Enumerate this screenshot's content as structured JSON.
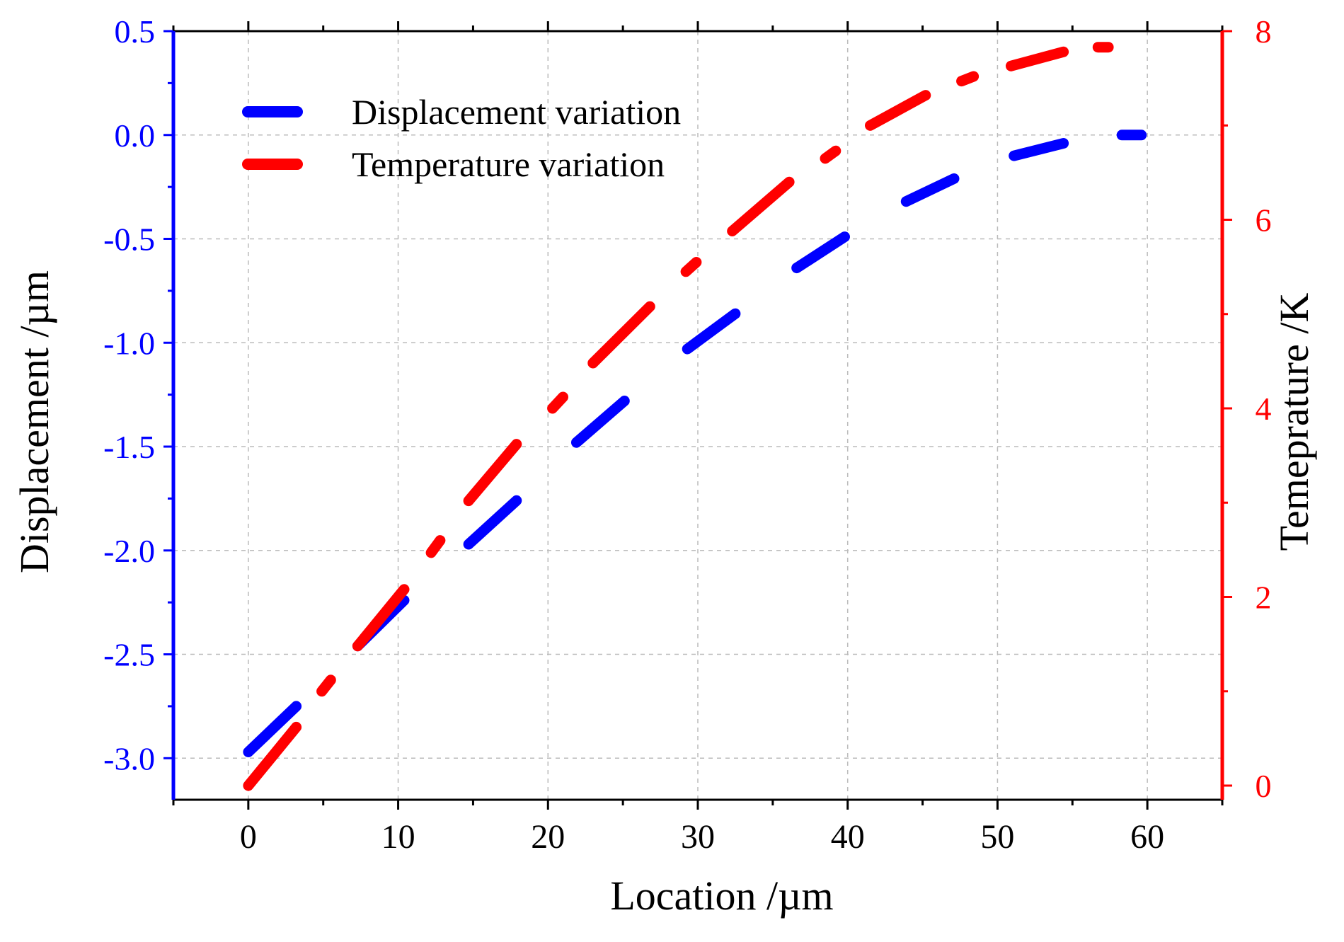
{
  "chart_data": {
    "type": "line",
    "x_label": "Location /µm",
    "y_left_label": "Displacement /µm",
    "y_right_label": "Temeprature /K",
    "x_range": [
      -5,
      65
    ],
    "y_left_range": [
      -3.2,
      0.5
    ],
    "y_right_range": [
      -0.15,
      8
    ],
    "x_ticks": [
      0,
      10,
      20,
      30,
      40,
      50,
      60
    ],
    "x_tick_labels": [
      "0",
      "10",
      "20",
      "30",
      "40",
      "50",
      "60"
    ],
    "y_left_ticks": [
      0.5,
      0.0,
      -0.5,
      -1.0,
      -1.5,
      -2.0,
      -2.5,
      -3.0
    ],
    "y_left_tick_labels": [
      "0.5",
      "0.0",
      "-0.5",
      "-1.0",
      "-1.5",
      "-2.0",
      "-2.5",
      "-3.0"
    ],
    "y_right_ticks": [
      0,
      2,
      4,
      6,
      8
    ],
    "y_right_tick_labels": [
      "0",
      "2",
      "4",
      "6",
      "8"
    ],
    "grid": true,
    "legend_position": "top-left",
    "colors": {
      "left_axis": "#0000ff",
      "right_axis": "#ff0000",
      "grid": "#bbbbbb",
      "frame": "#000000"
    },
    "series": [
      {
        "name": "Displacement variation",
        "axis": "left",
        "color": "#0000ff",
        "style": "dash",
        "segments": [
          [
            [
              0,
              -2.97
            ],
            [
              3.2,
              -2.75
            ]
          ],
          [
            [
              7.3,
              -2.46
            ],
            [
              10.4,
              -2.24
            ]
          ],
          [
            [
              14.7,
              -1.97
            ],
            [
              17.9,
              -1.76
            ]
          ],
          [
            [
              21.9,
              -1.48
            ],
            [
              25.1,
              -1.28
            ]
          ],
          [
            [
              29.3,
              -1.03
            ],
            [
              32.5,
              -0.86
            ]
          ],
          [
            [
              36.6,
              -0.64
            ],
            [
              39.8,
              -0.49
            ]
          ],
          [
            [
              43.9,
              -0.32
            ],
            [
              47.1,
              -0.21
            ]
          ],
          [
            [
              51.1,
              -0.1
            ],
            [
              54.4,
              -0.04
            ]
          ],
          [
            [
              58.3,
              0.0
            ],
            [
              59.6,
              0.0
            ]
          ]
        ]
      },
      {
        "name": "Temperature variation",
        "axis": "right",
        "color": "#ff0000",
        "style": "dash-dot",
        "segments": [
          [
            [
              0,
              0.0
            ],
            [
              3.2,
              0.62
            ]
          ],
          [
            [
              4.9,
              1.0
            ],
            [
              5.5,
              1.12
            ]
          ],
          [
            [
              7.3,
              1.48
            ],
            [
              10.4,
              2.08
            ]
          ],
          [
            [
              12.2,
              2.47
            ],
            [
              12.8,
              2.6
            ]
          ],
          [
            [
              14.7,
              3.02
            ],
            [
              17.9,
              3.62
            ]
          ],
          [
            [
              20.3,
              4.0
            ],
            [
              21.0,
              4.12
            ]
          ],
          [
            [
              23.0,
              4.48
            ],
            [
              26.8,
              5.08
            ]
          ],
          [
            [
              29.2,
              5.45
            ],
            [
              29.9,
              5.55
            ]
          ],
          [
            [
              32.3,
              5.88
            ],
            [
              36.1,
              6.4
            ]
          ],
          [
            [
              38.5,
              6.65
            ],
            [
              39.2,
              6.73
            ]
          ],
          [
            [
              41.5,
              7.0
            ],
            [
              45.2,
              7.32
            ]
          ],
          [
            [
              47.6,
              7.47
            ],
            [
              48.4,
              7.52
            ]
          ],
          [
            [
              50.9,
              7.63
            ],
            [
              54.4,
              7.78
            ]
          ],
          [
            [
              56.7,
              7.83
            ],
            [
              57.4,
              7.83
            ]
          ]
        ]
      }
    ]
  }
}
